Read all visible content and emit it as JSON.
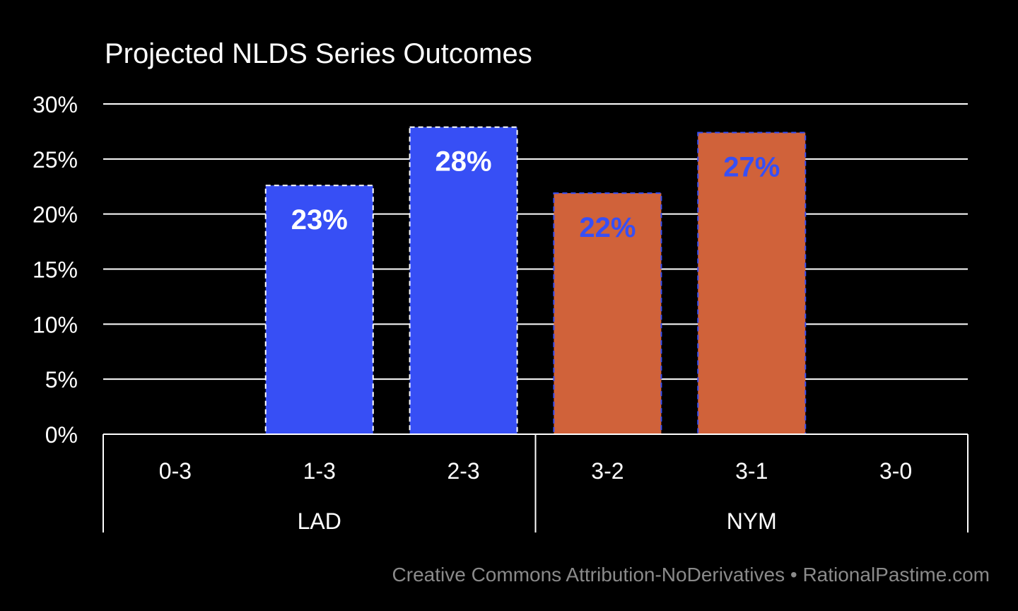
{
  "chart_data": {
    "type": "bar",
    "title": "Projected NLDS Series Outcomes",
    "xlabel": "",
    "ylabel": "",
    "ylim": [
      0,
      30
    ],
    "y_ticks": [
      0,
      5,
      10,
      15,
      20,
      25,
      30
    ],
    "y_tick_labels": [
      "0%",
      "5%",
      "10%",
      "15%",
      "20%",
      "25%",
      "30%"
    ],
    "grid": true,
    "categories": [
      "0-3",
      "1-3",
      "2-3",
      "3-2",
      "3-1",
      "3-0"
    ],
    "groups": [
      {
        "name": "LAD",
        "categories": [
          "0-3",
          "1-3",
          "2-3"
        ]
      },
      {
        "name": "NYM",
        "categories": [
          "3-2",
          "3-1",
          "3-0"
        ]
      }
    ],
    "values": [
      0,
      22.6,
      27.9,
      21.9,
      27.4,
      0
    ],
    "data_labels": [
      "",
      "23%",
      "28%",
      "22%",
      "27%",
      ""
    ],
    "bar_colors": [
      "#374ff5",
      "#374ff5",
      "#374ff5",
      "#d0623a",
      "#d0623a",
      "#d0623a"
    ],
    "bar_border_colors": [
      "#ffffff",
      "#ffffff",
      "#ffffff",
      "#374ff5",
      "#374ff5",
      "#374ff5"
    ],
    "label_colors": [
      "#ffffff",
      "#ffffff",
      "#ffffff",
      "#374ff5",
      "#374ff5",
      "#374ff5"
    ],
    "legend": "none"
  },
  "footer": {
    "credit": "Creative Commons Attribution-NoDerivatives • RationalPastime.com"
  }
}
